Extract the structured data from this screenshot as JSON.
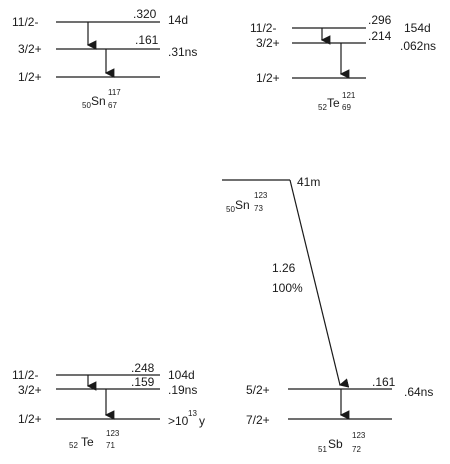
{
  "panels": {
    "sn117": {
      "levels": [
        {
          "spin": "11/2-",
          "energy": ".320",
          "halflife": "14d"
        },
        {
          "spin": "3/2+",
          "energy": ".161",
          "halflife": ".31ns"
        },
        {
          "spin": "1/2+",
          "energy": "",
          "halflife": ""
        }
      ],
      "nuclide": {
        "Z": "50",
        "symbol": "Sn",
        "A": "117",
        "N": "67"
      }
    },
    "te121": {
      "levels": [
        {
          "spin": "11/2-",
          "energy": ".296",
          "halflife": "154d"
        },
        {
          "spin": "3/2+",
          "energy": ".214",
          "halflife": ".062ns"
        },
        {
          "spin": "1/2+",
          "energy": "",
          "halflife": ""
        }
      ],
      "nuclide": {
        "Z": "52",
        "symbol": "Te",
        "A": "121",
        "N": "69"
      }
    },
    "te123": {
      "levels": [
        {
          "spin": "11/2-",
          "energy": ".248",
          "halflife": "104d"
        },
        {
          "spin": "3/2+",
          "energy": ".159",
          "halflife": ".19ns"
        },
        {
          "spin": "1/2+",
          "energy": "",
          "halflife": ">10"
        }
      ],
      "ground_halflife_exp": "13",
      "ground_halflife_unit": "y",
      "nuclide": {
        "Z": "52",
        "symbol": "Te",
        "A": "123",
        "N": "71"
      }
    },
    "sn123": {
      "parent_halflife": "41m",
      "parent": {
        "Z": "50",
        "symbol": "Sn",
        "A": "123",
        "N": "73"
      },
      "beta_energy": "1.26",
      "beta_branch": "100%"
    },
    "sb123": {
      "levels": [
        {
          "spin": "5/2+",
          "energy": ".161",
          "halflife": ".64ns"
        },
        {
          "spin": "7/2+",
          "energy": "",
          "halflife": ""
        }
      ],
      "nuclide": {
        "Z": "51",
        "symbol": "Sb",
        "A": "123",
        "N": "72"
      }
    }
  }
}
